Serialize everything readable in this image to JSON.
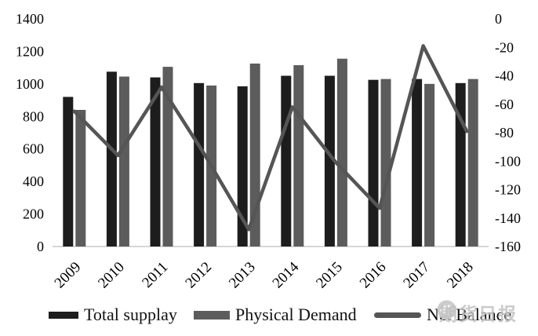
{
  "chart_data": {
    "type": "combo",
    "title": "",
    "xlabel": "",
    "ylabel_left": "",
    "ylabel_right": "",
    "grid": false,
    "legend_position": "bottom",
    "categories": [
      "2009",
      "2010",
      "2011",
      "2012",
      "2013",
      "2014",
      "2015",
      "2016",
      "2017",
      "2018"
    ],
    "series": [
      {
        "name": "Total supplay",
        "type": "bar",
        "axis": "left",
        "color": "#1d1d1d",
        "values": [
          920,
          1075,
          1040,
          1005,
          985,
          1050,
          1050,
          1025,
          1030,
          1005
        ]
      },
      {
        "name": "Physical Demand",
        "type": "bar",
        "axis": "left",
        "color": "#5c5c5c",
        "values": [
          840,
          1045,
          1105,
          990,
          1125,
          1115,
          1155,
          1030,
          1000,
          1030
        ]
      },
      {
        "name": "Net Balance",
        "type": "line",
        "axis": "right",
        "color": "#555555",
        "values": [
          -65,
          -96,
          -48,
          -96,
          -148,
          -62,
          -101,
          -133,
          -19,
          -79
        ]
      }
    ],
    "left_axis": {
      "min": 0,
      "max": 1400,
      "step": 200,
      "ticks": [
        0,
        200,
        400,
        600,
        800,
        1000,
        1200,
        1400
      ]
    },
    "right_axis": {
      "min": -160,
      "max": 0,
      "step": 20,
      "ticks": [
        0,
        -20,
        -40,
        -60,
        -80,
        -100,
        -120,
        -140,
        -160
      ]
    },
    "baseline_color": "#c9c9c9",
    "text_color": "#000000"
  },
  "legend": {
    "item1": "Total supplay",
    "item2": "Physical Demand",
    "item3": "Net Balance"
  },
  "watermark": {
    "text": "期货日报",
    "logo": "futures-daily-circle-logo",
    "color": "#c2c2c2"
  }
}
